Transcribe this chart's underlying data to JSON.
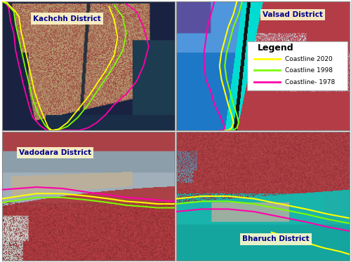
{
  "legend_entries": [
    {
      "label": "Coastline 2020",
      "color": "#ffff00",
      "lw": 2.0
    },
    {
      "label": "Coastline 1998",
      "color": "#7cfc00",
      "lw": 2.0
    },
    {
      "label": "Coastline- 1978",
      "color": "#ff00aa",
      "lw": 2.0
    }
  ],
  "label_box_color": "#fffacd",
  "label_text_color": "#00008b",
  "border_color": "#888888"
}
